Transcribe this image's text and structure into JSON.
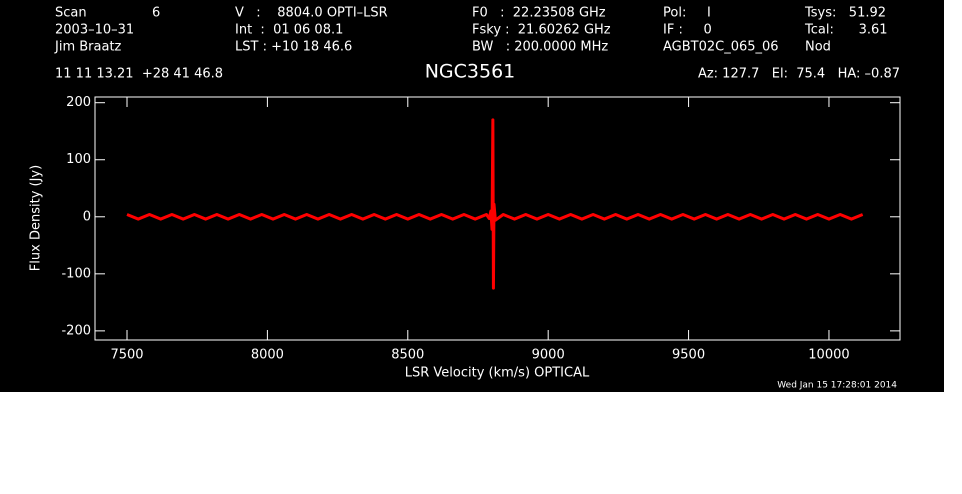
{
  "header": {
    "lines": [
      [
        "Scan",
        "6",
        "V   :    8804.0 OPTI–LSR",
        "F0   :  22.23508 GHz",
        "Pol:     I",
        "Tsys:   51.92"
      ],
      [
        "2003–10–31",
        "",
        "Int  :  01 06 08.1",
        "Fsky :  21.60262 GHz",
        "IF :     0",
        "Tcal:      3.61"
      ],
      [
        "Jim Braatz",
        "",
        "LST : +10 18 46.6",
        "BW   : 200.0000 MHz",
        "AGBT02C_065_06",
        "Nod"
      ]
    ],
    "coords": "11 11 13.21  +28 41 46.8",
    "position": "Az: 127.7   El:  75.4   HA: –0.87",
    "timestamp": "Wed Jan 15 17:28:01 2014"
  },
  "chart_data": {
    "type": "line",
    "title": "NGC3561",
    "x_label": "LSR Velocity (km/s) OPTICAL",
    "y_label": "Flux Density (Jy)",
    "color": "#ff0000",
    "x": [
      7500,
      7540,
      7580,
      7620,
      7660,
      7700,
      7740,
      7780,
      7820,
      7860,
      7900,
      7940,
      7980,
      8020,
      8060,
      8100,
      8140,
      8180,
      8220,
      8260,
      8300,
      8340,
      8380,
      8420,
      8460,
      8500,
      8540,
      8580,
      8620,
      8660,
      8700,
      8740,
      8780,
      8790,
      8796,
      8800,
      8803,
      8805,
      8807,
      8812,
      8840,
      8880,
      8920,
      8960,
      9000,
      9040,
      9080,
      9120,
      9160,
      9200,
      9240,
      9280,
      9320,
      9360,
      9400,
      9440,
      9480,
      9520,
      9560,
      9600,
      9640,
      9680,
      9720,
      9760,
      9800,
      9840,
      9880,
      9920,
      9960,
      10000,
      10040,
      10080,
      10120
    ],
    "values": [
      4,
      -4,
      4,
      -4,
      4,
      -4,
      4,
      -4,
      4,
      -4,
      4,
      -4,
      4,
      -4,
      4,
      -4,
      4,
      -4,
      4,
      -4,
      4,
      -4,
      4,
      -4,
      4,
      -4,
      4,
      -4,
      4,
      -4,
      4,
      -4,
      4,
      -3,
      10,
      -22,
      170,
      -125,
      22,
      -6,
      4,
      -4,
      4,
      -4,
      4,
      -4,
      4,
      -4,
      4,
      -4,
      4,
      -4,
      4,
      -4,
      4,
      -4,
      4,
      -4,
      4,
      -4,
      4,
      -4,
      4,
      -4,
      4,
      -4,
      4,
      -4,
      4,
      -4,
      4,
      -4,
      4
    ],
    "xlim": [
      7386,
      10253
    ],
    "ylim": [
      -216,
      210
    ],
    "xticks": [
      7500,
      8000,
      8500,
      9000,
      9500,
      10000
    ],
    "yticks": [
      -200,
      -100,
      0,
      100,
      200
    ]
  }
}
